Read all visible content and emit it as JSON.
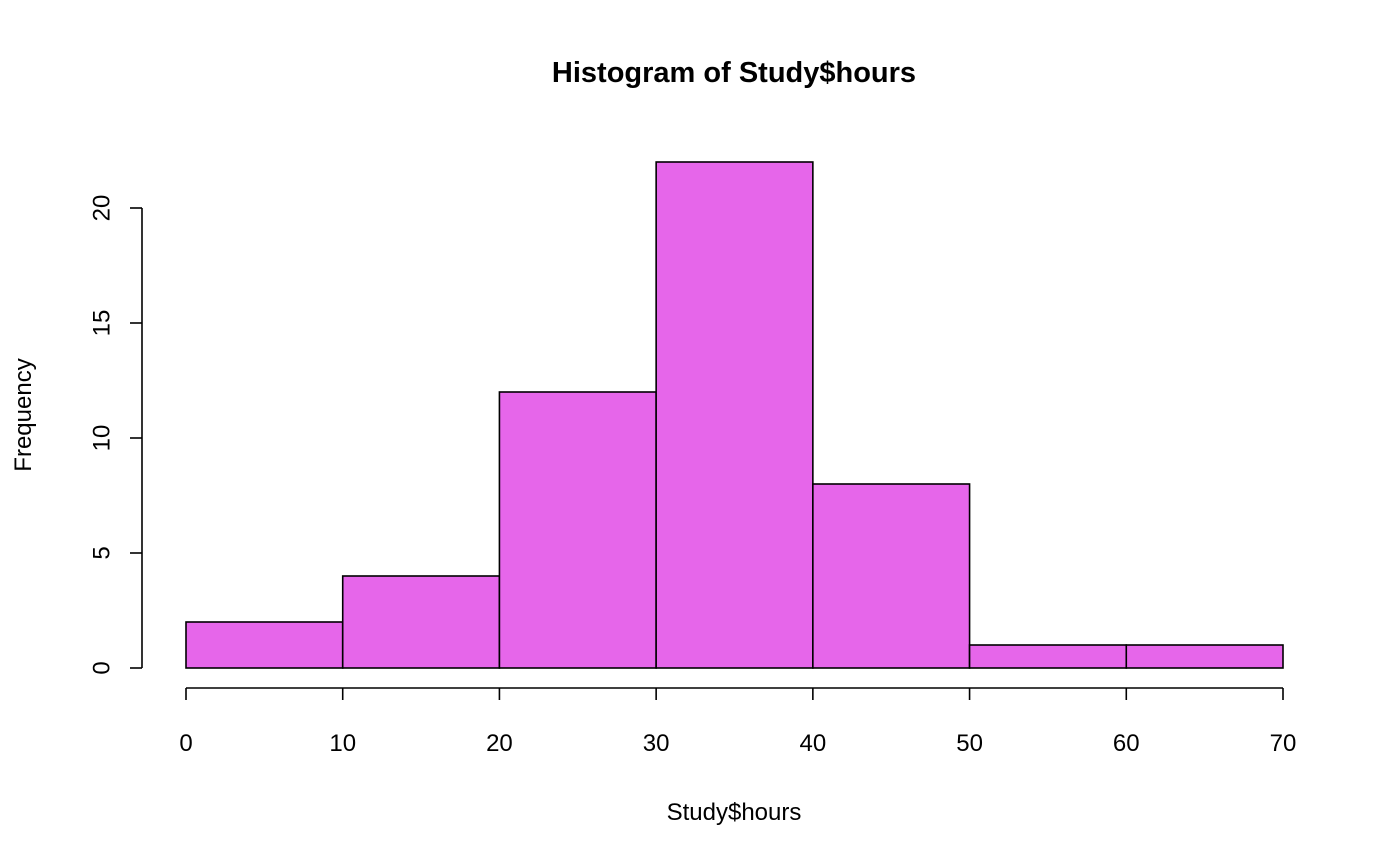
{
  "chart_data": {
    "type": "bar",
    "title": "Histogram of Study$hours",
    "xlabel": "Study$hours",
    "ylabel": "Frequency",
    "bins": [
      {
        "start": 0,
        "end": 10,
        "count": 2
      },
      {
        "start": 10,
        "end": 20,
        "count": 4
      },
      {
        "start": 20,
        "end": 30,
        "count": 12
      },
      {
        "start": 30,
        "end": 40,
        "count": 22
      },
      {
        "start": 40,
        "end": 50,
        "count": 8
      },
      {
        "start": 50,
        "end": 60,
        "count": 1
      },
      {
        "start": 60,
        "end": 70,
        "count": 1
      }
    ],
    "xlim": [
      0,
      70
    ],
    "ylim": [
      0,
      22
    ],
    "x_ticks": [
      "0",
      "10",
      "20",
      "30",
      "40",
      "50",
      "60",
      "70"
    ],
    "y_ticks": [
      "0",
      "5",
      "10",
      "15",
      "20"
    ],
    "bar_color": "#E666EA",
    "border_color": "#000000",
    "grid": false,
    "legend": "none"
  }
}
